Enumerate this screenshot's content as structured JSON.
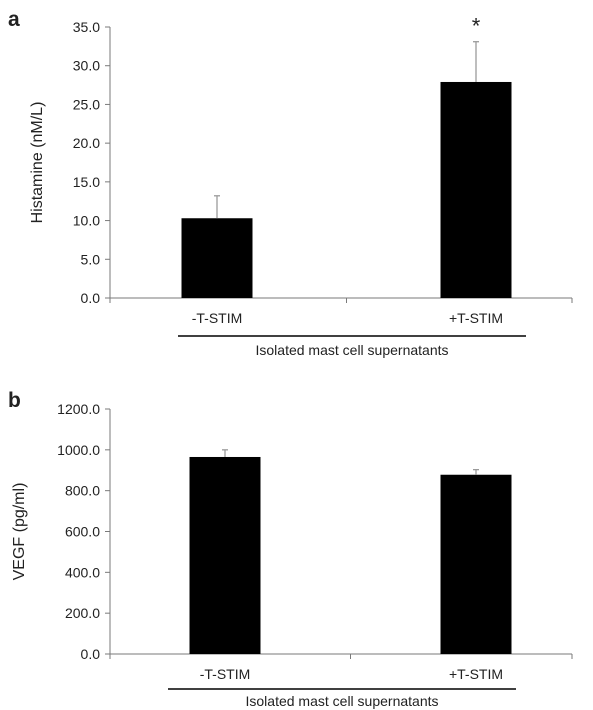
{
  "panels": [
    {
      "label": "a",
      "group_label": "Isolated mast cell supernatants"
    },
    {
      "label": "b",
      "group_label": "Isolated mast cell supernatants"
    }
  ],
  "chart_data": [
    {
      "type": "bar",
      "categories": [
        "-T-STIM",
        "+T-STIM"
      ],
      "values": [
        10.3,
        27.9
      ],
      "errors": [
        2.9,
        5.2
      ],
      "annotations": [
        "",
        "*"
      ],
      "ylabel": "Histamine  (nM/L)",
      "ylim": [
        0,
        35
      ],
      "yticks": [
        0,
        5,
        10,
        15,
        20,
        25,
        30,
        35
      ],
      "ytick_labels": [
        "0.0",
        "5.0",
        "10.0",
        "15.0",
        "20.0",
        "25.0",
        "30.0",
        "35.0"
      ],
      "bar_color": "#000000",
      "grid": false
    },
    {
      "type": "bar",
      "categories": [
        "-T-STIM",
        "+T-STIM"
      ],
      "values": [
        965,
        878
      ],
      "errors": [
        35,
        25
      ],
      "annotations": [
        "",
        ""
      ],
      "ylabel": "VEGF (pg/ml)",
      "ylim": [
        0,
        1200
      ],
      "yticks": [
        0,
        200,
        400,
        600,
        800,
        1000,
        1200
      ],
      "ytick_labels": [
        "0.0",
        "200.0",
        "400.0",
        "600.0",
        "800.0",
        "1000.0",
        "1200.0"
      ],
      "bar_color": "#000000",
      "grid": false
    }
  ]
}
